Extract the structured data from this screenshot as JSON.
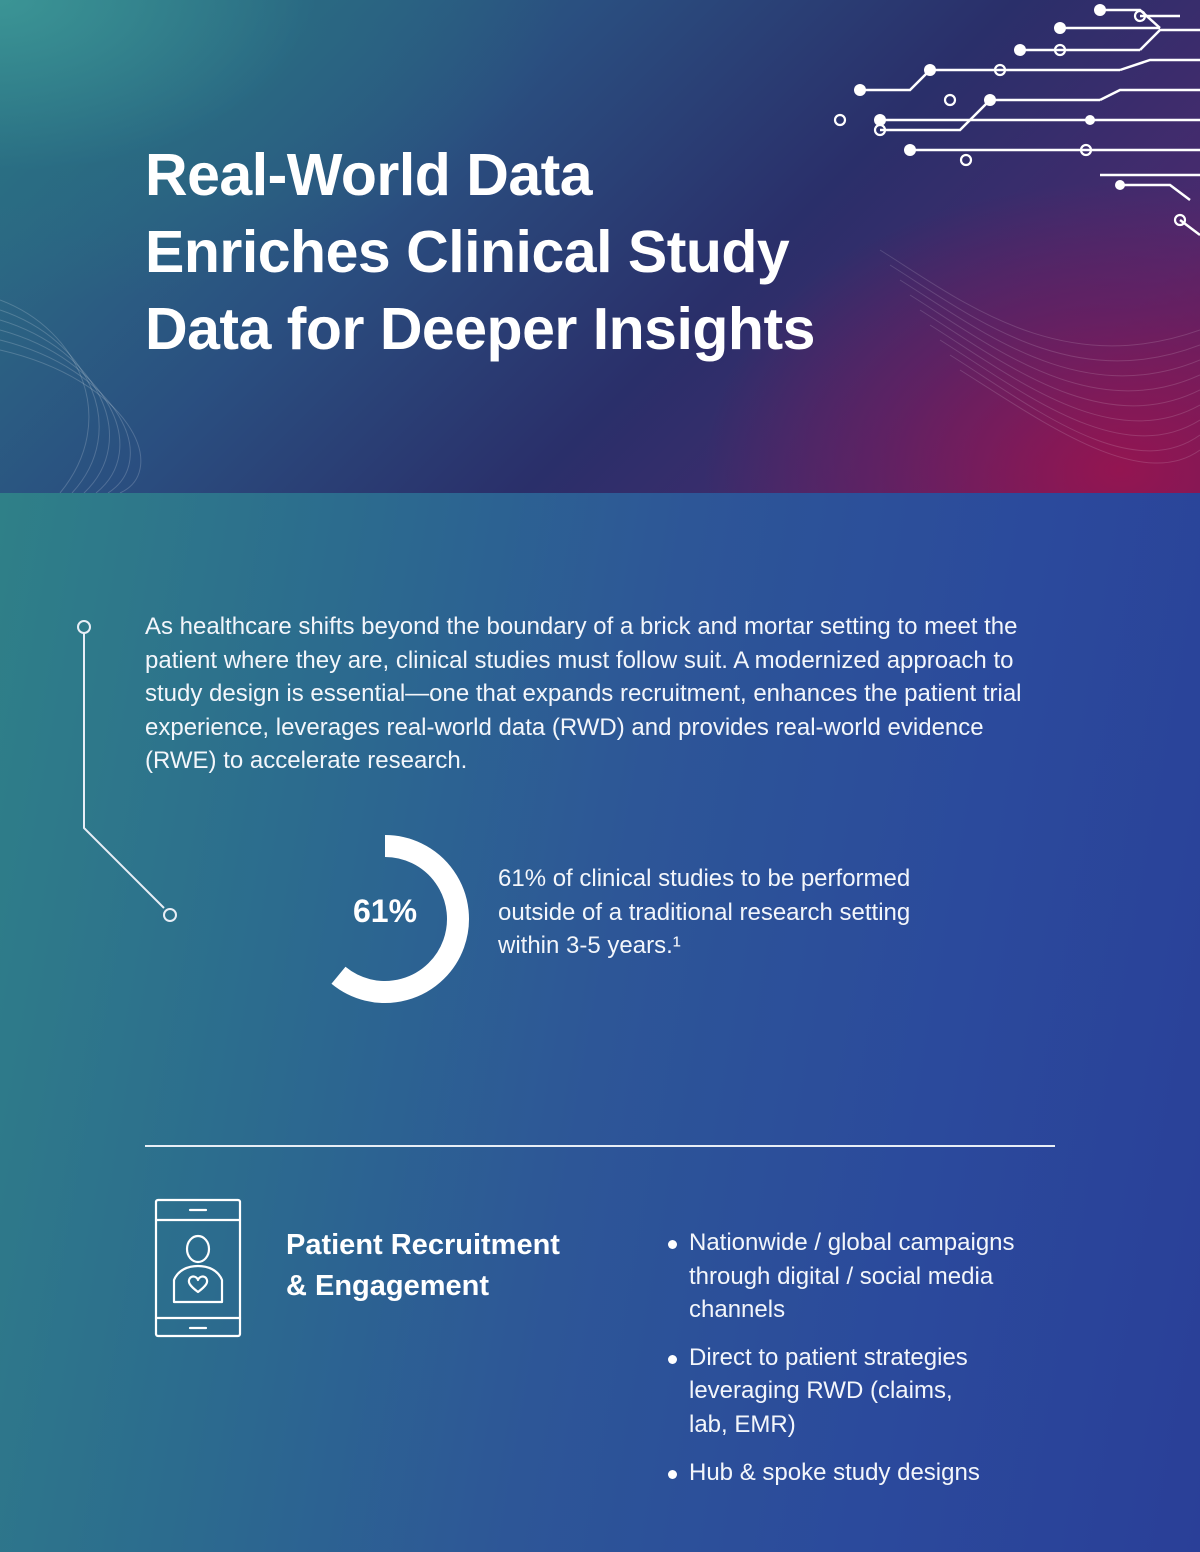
{
  "hero": {
    "title_lines": [
      "Real-World Data",
      "Enriches Clinical Study",
      "Data for Deeper Insights"
    ]
  },
  "intro": {
    "text": "As healthcare shifts beyond the boundary of a brick and mortar setting to meet the patient where they are, clinical studies must follow suit. A modernized approach to study design is essential—one that expands recruitment, enhances the patient trial experience, leverages real-world data (RWD) and provides real-world evidence (RWE) to accelerate research."
  },
  "stat": {
    "value_label": "61%",
    "percent": 61,
    "description": "61% of clinical studies to be performed outside of a traditional research setting within 3-5 years.¹"
  },
  "section": {
    "title_lines": [
      "Patient Recruitment",
      "& Engagement"
    ],
    "icon": "phone-patient-heart-icon",
    "bullets": [
      {
        "lines": [
          "Nationwide / global campaigns",
          "through digital / social media",
          "channels"
        ]
      },
      {
        "lines": [
          "Direct to patient strategies",
          "leveraging RWD (claims,",
          "lab, EMR)"
        ]
      },
      {
        "lines": [
          "Hub & spoke study designs"
        ]
      }
    ]
  },
  "colors": {
    "teal": "#2f8088",
    "blue": "#2a3f98",
    "magenta": "#6d1f5c",
    "white": "#ffffff"
  }
}
